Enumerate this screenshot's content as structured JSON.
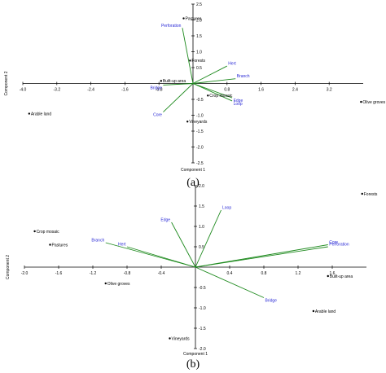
{
  "chart_data": [
    {
      "type": "scatter",
      "subtype": "pca-biplot",
      "panel_label": "(a)",
      "xlabel": "Component 1",
      "ylabel": "Component 2",
      "xlim": [
        -4.0,
        4.0
      ],
      "ylim": [
        -2.5,
        2.5
      ],
      "xticks": [
        -4.0,
        -3.2,
        -2.4,
        -1.6,
        -0.8,
        0.8,
        1.6,
        2.4,
        3.2
      ],
      "xtick_labels": [
        "-4.0",
        "-3.2",
        "-2.4",
        "-1.6",
        "-0.8",
        "0.8",
        "1.6",
        "2.4",
        "3.2"
      ],
      "yticks": [
        -2.5,
        -2.0,
        -1.5,
        -1.0,
        -0.5,
        0.5,
        1.0,
        1.5,
        2.0,
        2.5
      ],
      "ytick_labels": [
        "-2.5",
        "-2.0",
        "-1.5",
        "-1.0",
        "-0.5",
        "0.5",
        "1.0",
        "1.5",
        "2.0",
        "2.5"
      ],
      "points": [
        {
          "label": "Pastures",
          "x": -0.22,
          "y": 2.05
        },
        {
          "label": "Forests",
          "x": -0.07,
          "y": 0.72
        },
        {
          "label": "Built-up area",
          "x": -0.75,
          "y": 0.08
        },
        {
          "label": "Crop mosaic",
          "x": 0.35,
          "y": -0.38
        },
        {
          "label": "Vineyards",
          "x": -0.13,
          "y": -1.2
        },
        {
          "label": "Arable land",
          "x": -3.85,
          "y": -0.95
        },
        {
          "label": "Olive groves",
          "x": 3.95,
          "y": -0.58
        }
      ],
      "vectors": [
        {
          "label": "Perforation",
          "x": -0.25,
          "y": 1.75
        },
        {
          "label": "Hert",
          "x": 0.8,
          "y": 0.55
        },
        {
          "label": "Branch",
          "x": 1.0,
          "y": 0.15
        },
        {
          "label": "Bridge",
          "x": -0.7,
          "y": -0.05
        },
        {
          "label": "Edge",
          "x": 0.92,
          "y": -0.45
        },
        {
          "label": "Loop",
          "x": 0.92,
          "y": -0.55
        },
        {
          "label": "Core",
          "x": -0.7,
          "y": -0.9
        }
      ]
    },
    {
      "type": "scatter",
      "subtype": "pca-biplot",
      "panel_label": "(b)",
      "xlabel": "Component 1",
      "ylabel": "Component 2",
      "xlim": [
        -2.0,
        2.0
      ],
      "ylim": [
        -2.0,
        2.0
      ],
      "xticks": [
        -2.0,
        -1.6,
        -1.2,
        -0.8,
        -0.4,
        0.4,
        0.8,
        1.2,
        1.6
      ],
      "xtick_labels": [
        "-2.0",
        "-1.6",
        "-1.2",
        "-0.8",
        "-0.4",
        "0.4",
        "0.8",
        "1.2",
        "1.6"
      ],
      "yticks": [
        -2.0,
        -1.5,
        -1.0,
        -0.5,
        0.5,
        1.0,
        1.5,
        2.0
      ],
      "ytick_labels": [
        "-2.0",
        "-1.5",
        "-1.0",
        "-0.5",
        "0.5",
        "1.0",
        "1.5",
        "2.0"
      ],
      "points": [
        {
          "label": "Crop mosaic",
          "x": -1.88,
          "y": 0.88
        },
        {
          "label": "Pastures",
          "x": -1.7,
          "y": 0.55
        },
        {
          "label": "Olive groves",
          "x": -1.05,
          "y": -0.4
        },
        {
          "label": "Vineyards",
          "x": -0.3,
          "y": -1.75
        },
        {
          "label": "Forests",
          "x": 1.95,
          "y": 1.8
        },
        {
          "label": "Built-up area",
          "x": 1.55,
          "y": -0.22
        },
        {
          "label": "Arable land",
          "x": 1.38,
          "y": -1.08
        }
      ],
      "vectors": [
        {
          "label": "Loop",
          "x": 0.3,
          "y": 1.4
        },
        {
          "label": "Edge",
          "x": -0.28,
          "y": 1.1
        },
        {
          "label": "Branch",
          "x": -1.05,
          "y": 0.6
        },
        {
          "label": "Hert",
          "x": -0.8,
          "y": 0.5
        },
        {
          "label": "Core",
          "x": 1.55,
          "y": 0.55
        },
        {
          "label": "Perforation",
          "x": 1.55,
          "y": 0.5
        },
        {
          "label": "Bridge",
          "x": 0.8,
          "y": -0.75
        }
      ]
    }
  ]
}
